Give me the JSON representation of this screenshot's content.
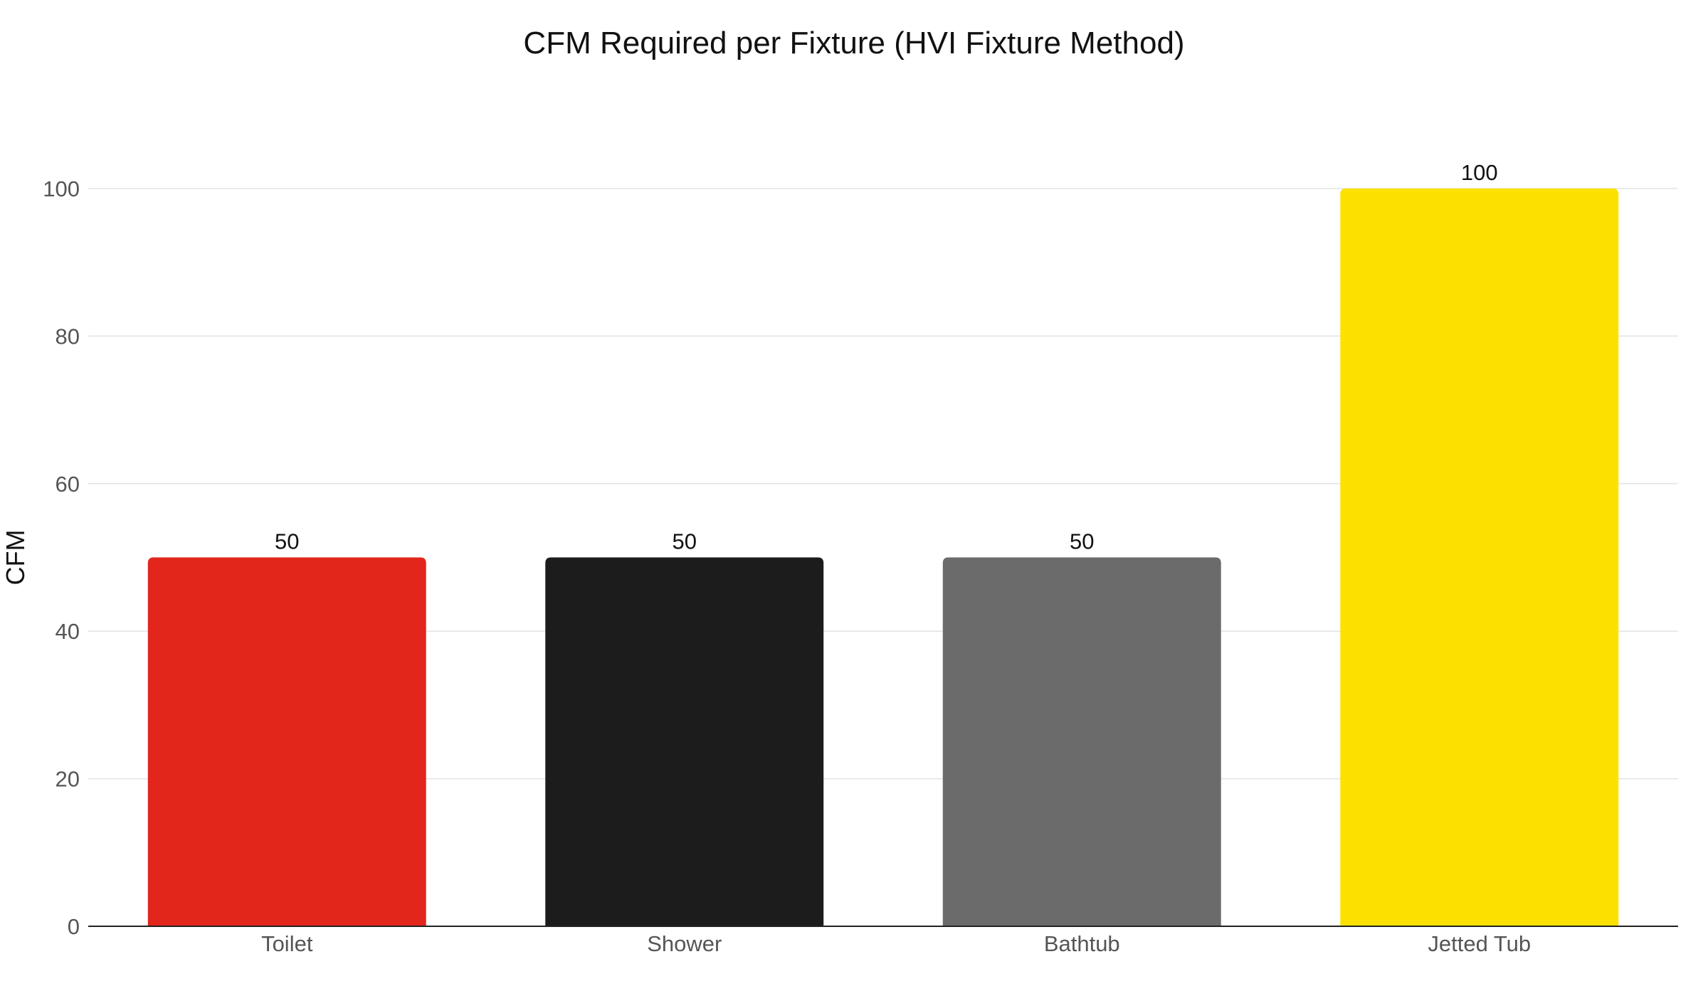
{
  "chart_data": {
    "type": "bar",
    "title": "CFM Required per Fixture (HVI Fixture Method)",
    "xlabel": "",
    "ylabel": "CFM",
    "categories": [
      "Toilet",
      "Shower",
      "Bathtub",
      "Jetted Tub"
    ],
    "values": [
      50,
      50,
      50,
      100
    ],
    "data_labels": [
      "50",
      "50",
      "50",
      "100"
    ],
    "bar_colors": [
      "#e2261c",
      "#1c1c1c",
      "#6b6b6b",
      "#fce100"
    ],
    "ylim": [
      0,
      100
    ],
    "yticks": [
      0,
      20,
      40,
      60,
      80,
      100
    ],
    "grid": true,
    "legend": "none"
  },
  "colors": {
    "grid": "#e3e3e3",
    "axis": "#222222"
  }
}
